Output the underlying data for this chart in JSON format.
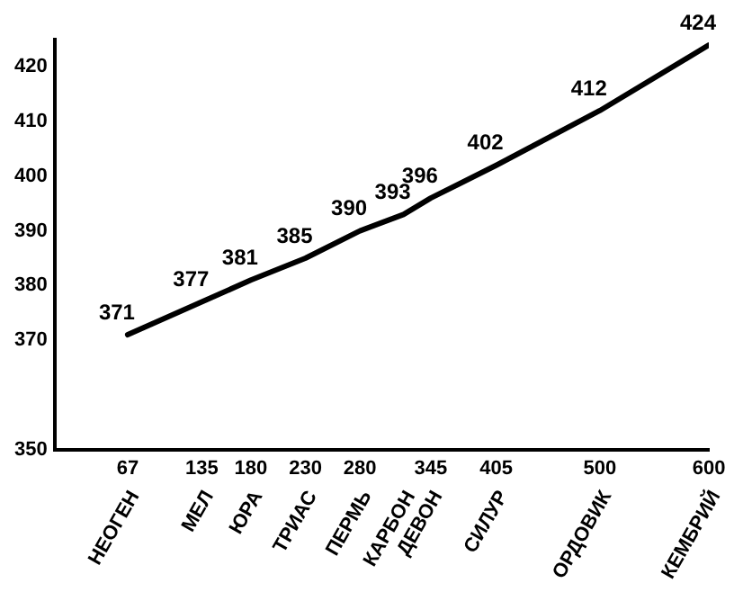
{
  "chart_data": {
    "type": "line",
    "x": [
      67,
      135,
      180,
      230,
      280,
      320,
      345,
      405,
      500,
      600
    ],
    "values": [
      371,
      377,
      381,
      385,
      390,
      393,
      396,
      402,
      412,
      424
    ],
    "color": "#000000",
    "marker": "none",
    "line_style": "solid",
    "data_labels": true,
    "grid": false,
    "legend": false,
    "xlim": [
      0,
      600
    ],
    "xticks": [
      67,
      135,
      180,
      230,
      280,
      345,
      405,
      500,
      600
    ],
    "ylim": [
      350,
      425
    ],
    "yticks": [
      350,
      370,
      380,
      390,
      400,
      410,
      420
    ],
    "annotations": [
      "НЕОГЕН",
      "МЕЛ",
      "ЮРА",
      "ТРИАС",
      "ПЕРМЬ",
      "КАРБОН",
      "ДЕВОН",
      "СИЛУР",
      "ОРДОВИК",
      "КЕМБРИЙ"
    ]
  }
}
